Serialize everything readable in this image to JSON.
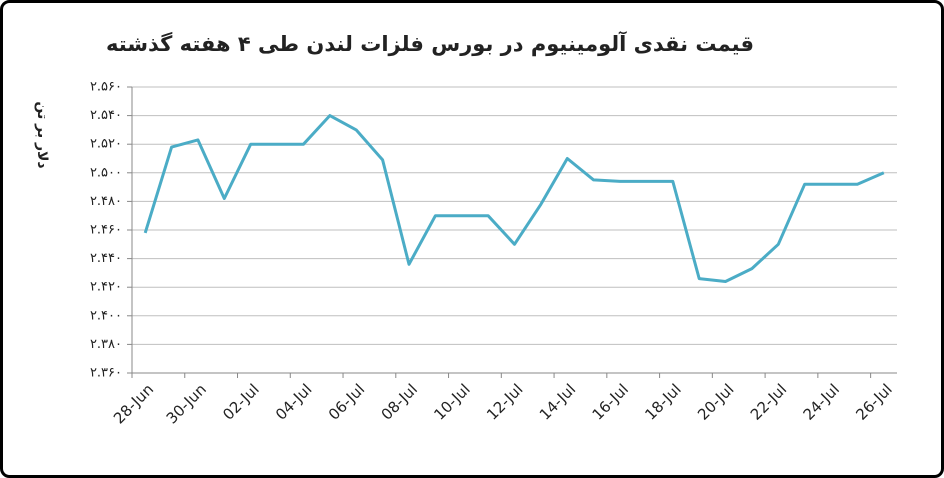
{
  "chart_data": {
    "type": "line",
    "title": "قیمت نقدی آلومینیوم در بورس فلزات لندن طی ۴ هفته گذشته",
    "y_label": "دلار بر تن",
    "categories": [
      "28-Jun",
      null,
      "30-Jun",
      null,
      "02-Jul",
      null,
      "04-Jul",
      null,
      "06-Jul",
      null,
      "08-Jul",
      null,
      "10-Jul",
      null,
      "12-Jul",
      null,
      "14-Jul",
      null,
      "16-Jul",
      null,
      "18-Jul",
      null,
      "20-Jul",
      null,
      "22-Jul",
      null,
      "24-Jul",
      null,
      "26-Jul"
    ],
    "series": [
      {
        "color": "#4bacc6",
        "values": [
          2458,
          2518,
          2523,
          2482,
          2520,
          2520,
          2520,
          2540,
          2530,
          2509,
          2436,
          2470,
          2470,
          2470,
          2450,
          2478,
          2510,
          2495,
          2494,
          2494,
          2494,
          2426,
          2424,
          2433,
          2450,
          2492,
          2492,
          2492,
          2500
        ]
      }
    ],
    "ylim": [
      2360,
      2560
    ],
    "yticks": [
      {
        "value": 2360,
        "label": "۲.۳۶۰"
      },
      {
        "value": 2380,
        "label": "۲.۳۸۰"
      },
      {
        "value": 2400,
        "label": "۲.۴۰۰"
      },
      {
        "value": 2420,
        "label": "۲.۴۲۰"
      },
      {
        "value": 2440,
        "label": "۲.۴۴۰"
      },
      {
        "value": 2460,
        "label": "۲.۴۶۰"
      },
      {
        "value": 2480,
        "label": "۲.۴۸۰"
      },
      {
        "value": 2500,
        "label": "۲.۵۰۰"
      },
      {
        "value": 2520,
        "label": "۲.۵۲۰"
      },
      {
        "value": 2540,
        "label": "۲.۵۴۰"
      },
      {
        "value": 2560,
        "label": "۲.۵۶۰"
      }
    ],
    "grid": true
  }
}
